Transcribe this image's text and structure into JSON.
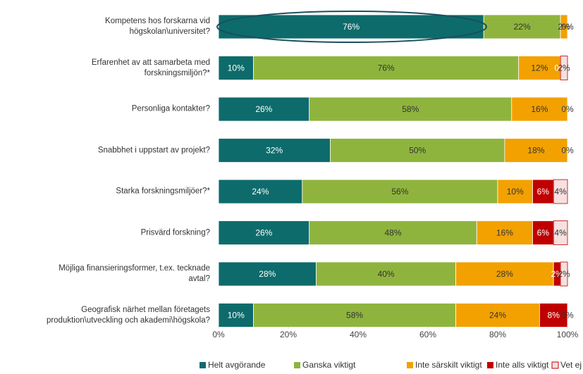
{
  "chart_data": {
    "type": "stacked_bar_horizontal",
    "categories": [
      "Kompetens hos forskarna vid\nhögskolan\\universitet?",
      "Erfarenhet av att samarbeta med\nforskningsmiljön?*",
      "Personliga kontakter?",
      "Snabbhet i uppstart av projekt?",
      "Starka forskningsmiljöer?*",
      "Prisvärd forskning?",
      "Möjliga finansieringsformer, t.ex. tecknade\navtal?",
      "Geografisk närhet mellan företagets\nproduktion\\utveckling och akademi\\högskola?"
    ],
    "series": [
      {
        "name": "Helt avgörande",
        "color": "#0e6b6b",
        "values": [
          76,
          10,
          26,
          32,
          24,
          26,
          28,
          10
        ],
        "value_labels": [
          "76%",
          "10%",
          "26%",
          "32%",
          "24%",
          "26%",
          "28%",
          "10%"
        ]
      },
      {
        "name": "Ganska viktigt",
        "color": "#8fb43e",
        "values": [
          22,
          76,
          58,
          50,
          56,
          48,
          40,
          58
        ],
        "value_labels": [
          "22%",
          "76%",
          "58%",
          "50%",
          "56%",
          "48%",
          "40%",
          "58%"
        ]
      },
      {
        "name": "Inte särskilt viktigt",
        "color": "#f2a100",
        "values": [
          2,
          12,
          16,
          18,
          10,
          16,
          28,
          24
        ],
        "value_labels": [
          "2%",
          "12%",
          "16%",
          "18%",
          "10%",
          "16%",
          "28%",
          "24%"
        ]
      },
      {
        "name": "Inte alls viktigt",
        "color": "#c00000",
        "values": [
          0,
          0,
          0,
          0,
          6,
          6,
          2,
          8
        ],
        "value_labels": [
          "0%",
          "0%",
          "0%",
          "0%",
          "6%",
          "6%",
          "2%",
          "8%"
        ]
      },
      {
        "name": "Vet ej",
        "color": "#f6e0e0",
        "values": [
          0,
          2,
          0,
          0,
          4,
          4,
          2,
          0
        ],
        "value_labels": [
          "0%",
          "2%",
          "0%",
          "0%",
          "4%",
          "4%",
          "2%",
          "0%"
        ]
      }
    ],
    "xlim": [
      0,
      100
    ],
    "xticks": [
      {
        "value": 0,
        "label": "0%"
      },
      {
        "value": 20,
        "label": "20%"
      },
      {
        "value": 40,
        "label": "40%"
      },
      {
        "value": 60,
        "label": "60%"
      },
      {
        "value": 80,
        "label": "80%"
      },
      {
        "value": 100,
        "label": "100%"
      }
    ],
    "grid": false,
    "legend": "bottom"
  }
}
